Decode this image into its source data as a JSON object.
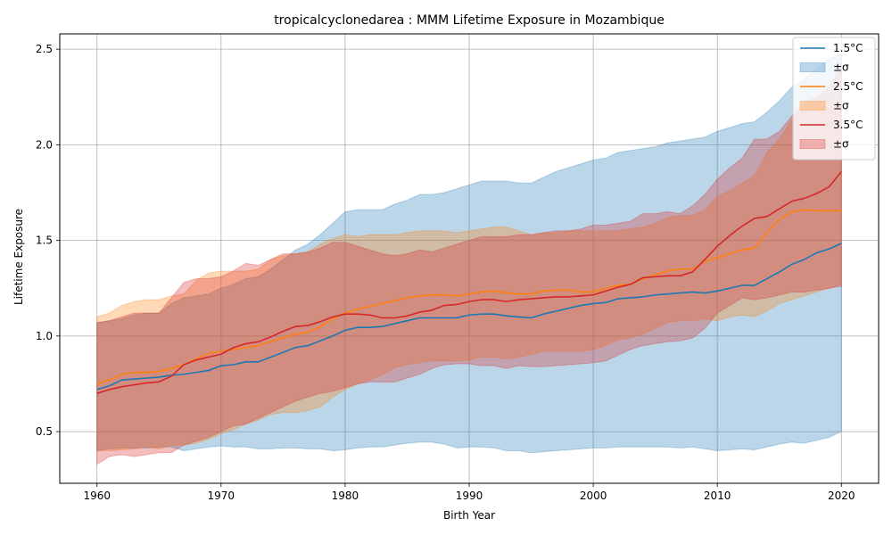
{
  "chart_data": {
    "type": "line",
    "title": "tropicalcyclonedarea : MMM Lifetime Exposure in Mozambique",
    "xlabel": "Birth Year",
    "ylabel": "Lifetime Exposure",
    "xlim": [
      1957,
      2023
    ],
    "ylim": [
      0.23,
      2.58
    ],
    "xticks": [
      1960,
      1970,
      1980,
      1990,
      2000,
      2010,
      2020
    ],
    "yticks": [
      0.5,
      1.0,
      1.5,
      2.0,
      2.5
    ],
    "xtick_labels": [
      "1960",
      "1970",
      "1980",
      "1990",
      "2000",
      "2010",
      "2020"
    ],
    "ytick_labels": [
      "0.5",
      "1.0",
      "1.5",
      "2.0",
      "2.5"
    ],
    "grid": true,
    "legend_position": "top-right",
    "x": [
      1960,
      1961,
      1962,
      1963,
      1964,
      1965,
      1966,
      1967,
      1968,
      1969,
      1970,
      1971,
      1972,
      1973,
      1974,
      1975,
      1976,
      1977,
      1978,
      1979,
      1980,
      1981,
      1982,
      1983,
      1984,
      1985,
      1986,
      1987,
      1988,
      1989,
      1990,
      1991,
      1992,
      1993,
      1994,
      1995,
      1996,
      1997,
      1998,
      1999,
      2000,
      2001,
      2002,
      2003,
      2004,
      2005,
      2006,
      2007,
      2008,
      2009,
      2010,
      2011,
      2012,
      2013,
      2014,
      2015,
      2016,
      2017,
      2018,
      2019,
      2020
    ],
    "series": [
      {
        "name": "1.5°C",
        "band_name": "±σ",
        "color": "#1f77b4",
        "mean": [
          0.72,
          0.74,
          0.77,
          0.775,
          0.78,
          0.785,
          0.795,
          0.8,
          0.81,
          0.82,
          0.845,
          0.85,
          0.865,
          0.865,
          0.89,
          0.915,
          0.94,
          0.95,
          0.975,
          1.0,
          1.03,
          1.045,
          1.045,
          1.05,
          1.065,
          1.08,
          1.095,
          1.095,
          1.095,
          1.095,
          1.11,
          1.115,
          1.115,
          1.105,
          1.1,
          1.095,
          1.115,
          1.13,
          1.145,
          1.16,
          1.17,
          1.175,
          1.195,
          1.2,
          1.205,
          1.215,
          1.22,
          1.225,
          1.23,
          1.225,
          1.235,
          1.25,
          1.265,
          1.265,
          1.3,
          1.335,
          1.375,
          1.4,
          1.435,
          1.455,
          1.485
        ],
        "lower": [
          0.4,
          0.41,
          0.415,
          0.415,
          0.415,
          0.42,
          0.42,
          0.4,
          0.41,
          0.42,
          0.425,
          0.42,
          0.42,
          0.41,
          0.41,
          0.415,
          0.415,
          0.41,
          0.41,
          0.4,
          0.405,
          0.415,
          0.42,
          0.42,
          0.43,
          0.44,
          0.445,
          0.445,
          0.435,
          0.415,
          0.42,
          0.42,
          0.415,
          0.4,
          0.4,
          0.39,
          0.395,
          0.4,
          0.405,
          0.41,
          0.415,
          0.415,
          0.42,
          0.42,
          0.42,
          0.42,
          0.42,
          0.415,
          0.42,
          0.41,
          0.4,
          0.405,
          0.41,
          0.405,
          0.42,
          0.435,
          0.445,
          0.44,
          0.455,
          0.47,
          0.5
        ],
        "upper": [
          1.07,
          1.08,
          1.09,
          1.11,
          1.12,
          1.12,
          1.17,
          1.2,
          1.21,
          1.22,
          1.25,
          1.27,
          1.3,
          1.31,
          1.35,
          1.4,
          1.45,
          1.48,
          1.53,
          1.59,
          1.65,
          1.66,
          1.66,
          1.66,
          1.69,
          1.71,
          1.74,
          1.74,
          1.75,
          1.77,
          1.79,
          1.81,
          1.81,
          1.81,
          1.8,
          1.8,
          1.83,
          1.86,
          1.88,
          1.9,
          1.92,
          1.93,
          1.96,
          1.97,
          1.98,
          1.99,
          2.01,
          2.02,
          2.03,
          2.04,
          2.07,
          2.09,
          2.11,
          2.12,
          2.17,
          2.23,
          2.3,
          2.34,
          2.4,
          2.45,
          2.47
        ]
      },
      {
        "name": "2.5°C",
        "band_name": "±σ",
        "color": "#ff7f0e",
        "mean": [
          0.75,
          0.77,
          0.8,
          0.81,
          0.81,
          0.815,
          0.83,
          0.85,
          0.88,
          0.91,
          0.92,
          0.93,
          0.94,
          0.95,
          0.97,
          0.99,
          1.01,
          1.02,
          1.05,
          1.09,
          1.12,
          1.14,
          1.155,
          1.17,
          1.185,
          1.2,
          1.21,
          1.215,
          1.215,
          1.21,
          1.22,
          1.23,
          1.235,
          1.225,
          1.22,
          1.22,
          1.235,
          1.24,
          1.24,
          1.23,
          1.23,
          1.25,
          1.265,
          1.27,
          1.3,
          1.32,
          1.34,
          1.35,
          1.35,
          1.39,
          1.41,
          1.43,
          1.45,
          1.46,
          1.54,
          1.61,
          1.65,
          1.66,
          1.655,
          1.655,
          1.655
        ],
        "lower": [
          0.4,
          0.4,
          0.405,
          0.41,
          0.42,
          0.41,
          0.43,
          0.43,
          0.44,
          0.46,
          0.49,
          0.51,
          0.54,
          0.56,
          0.59,
          0.6,
          0.6,
          0.61,
          0.63,
          0.68,
          0.72,
          0.75,
          0.77,
          0.8,
          0.835,
          0.85,
          0.86,
          0.87,
          0.87,
          0.87,
          0.875,
          0.89,
          0.89,
          0.88,
          0.89,
          0.905,
          0.92,
          0.92,
          0.92,
          0.92,
          0.93,
          0.95,
          0.98,
          0.99,
          1.01,
          1.04,
          1.07,
          1.08,
          1.08,
          1.09,
          1.08,
          1.1,
          1.11,
          1.1,
          1.13,
          1.17,
          1.19,
          1.21,
          1.23,
          1.25,
          1.27
        ],
        "upper": [
          1.1,
          1.12,
          1.16,
          1.18,
          1.19,
          1.19,
          1.21,
          1.22,
          1.29,
          1.33,
          1.34,
          1.34,
          1.34,
          1.35,
          1.4,
          1.42,
          1.43,
          1.44,
          1.48,
          1.51,
          1.53,
          1.52,
          1.53,
          1.53,
          1.53,
          1.54,
          1.55,
          1.55,
          1.55,
          1.54,
          1.55,
          1.56,
          1.57,
          1.57,
          1.55,
          1.53,
          1.54,
          1.54,
          1.55,
          1.55,
          1.55,
          1.55,
          1.55,
          1.56,
          1.57,
          1.59,
          1.62,
          1.63,
          1.63,
          1.66,
          1.73,
          1.76,
          1.8,
          1.84,
          1.96,
          2.03,
          2.13,
          2.2,
          2.23,
          2.23,
          2.2
        ]
      },
      {
        "name": "3.5°C",
        "band_name": "±σ",
        "color": "#d62728",
        "mean": [
          0.7,
          0.72,
          0.735,
          0.745,
          0.755,
          0.76,
          0.79,
          0.85,
          0.875,
          0.89,
          0.905,
          0.94,
          0.96,
          0.97,
          0.995,
          1.025,
          1.05,
          1.055,
          1.075,
          1.1,
          1.115,
          1.115,
          1.11,
          1.095,
          1.095,
          1.105,
          1.125,
          1.135,
          1.16,
          1.165,
          1.18,
          1.19,
          1.19,
          1.18,
          1.19,
          1.195,
          1.2,
          1.205,
          1.205,
          1.21,
          1.215,
          1.235,
          1.255,
          1.27,
          1.305,
          1.31,
          1.315,
          1.315,
          1.335,
          1.4,
          1.47,
          1.525,
          1.575,
          1.615,
          1.625,
          1.665,
          1.705,
          1.72,
          1.745,
          1.78,
          1.86
        ],
        "lower": [
          0.33,
          0.37,
          0.38,
          0.37,
          0.38,
          0.39,
          0.39,
          0.43,
          0.45,
          0.47,
          0.5,
          0.53,
          0.54,
          0.57,
          0.6,
          0.63,
          0.66,
          0.68,
          0.7,
          0.71,
          0.73,
          0.75,
          0.76,
          0.76,
          0.76,
          0.78,
          0.8,
          0.83,
          0.85,
          0.855,
          0.855,
          0.845,
          0.845,
          0.83,
          0.845,
          0.84,
          0.84,
          0.845,
          0.85,
          0.855,
          0.86,
          0.87,
          0.9,
          0.93,
          0.95,
          0.96,
          0.97,
          0.975,
          0.99,
          1.04,
          1.12,
          1.16,
          1.2,
          1.19,
          1.2,
          1.215,
          1.23,
          1.23,
          1.24,
          1.25,
          1.26
        ],
        "upper": [
          1.07,
          1.08,
          1.1,
          1.12,
          1.12,
          1.12,
          1.2,
          1.28,
          1.3,
          1.3,
          1.31,
          1.34,
          1.38,
          1.37,
          1.4,
          1.43,
          1.43,
          1.44,
          1.46,
          1.49,
          1.49,
          1.47,
          1.45,
          1.43,
          1.42,
          1.43,
          1.45,
          1.44,
          1.46,
          1.48,
          1.5,
          1.52,
          1.52,
          1.52,
          1.53,
          1.53,
          1.54,
          1.55,
          1.55,
          1.56,
          1.58,
          1.58,
          1.59,
          1.6,
          1.64,
          1.64,
          1.65,
          1.64,
          1.68,
          1.74,
          1.82,
          1.88,
          1.93,
          2.03,
          2.03,
          2.07,
          2.15,
          2.22,
          2.25,
          2.3,
          2.42
        ]
      }
    ]
  }
}
